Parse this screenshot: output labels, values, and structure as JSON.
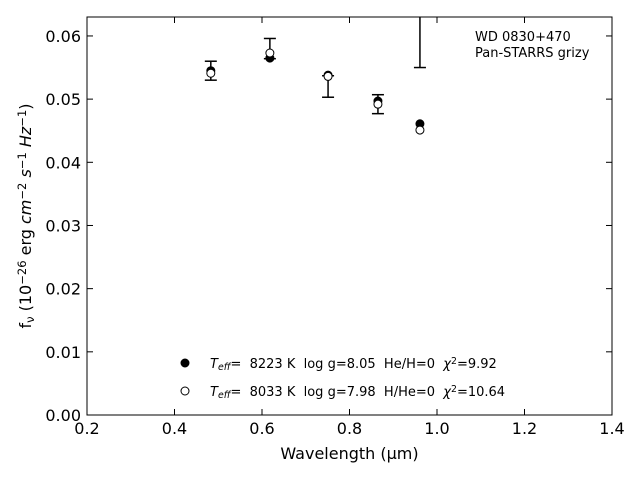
{
  "chart_data": {
    "type": "scatter",
    "x_label": "Wavelength (μm)",
    "y_label": [
      {
        "text": "f"
      },
      {
        "text": "ν",
        "sub": true
      },
      {
        "text": " (10"
      },
      {
        "text": "−26",
        "sup": true
      },
      {
        "text": " erg "
      },
      {
        "text": "cm",
        "italic": true
      },
      {
        "text": "−2",
        "sup": true
      },
      {
        "text": " "
      },
      {
        "text": "s",
        "italic": true
      },
      {
        "text": "−1",
        "sup": true
      },
      {
        "text": " "
      },
      {
        "text": "Hz",
        "italic": true
      },
      {
        "text": "−1",
        "sup": true
      },
      {
        "text": ")"
      }
    ],
    "annotation": [
      "WD 0830+470",
      "Pan-STARRS grizy"
    ],
    "x": [
      0.483,
      0.618,
      0.751,
      0.865,
      0.961
    ],
    "observed": {
      "color": "#000000",
      "values": [
        0.0545,
        0.058,
        0.052,
        0.0492,
        0.0625
      ],
      "errors": [
        0.0015,
        0.0016,
        0.0017,
        0.0015,
        0.0075
      ]
    },
    "series": [
      {
        "marker": "filled",
        "color": "#000000",
        "values": [
          0.0545,
          0.0565,
          0.0538,
          0.0497,
          0.0461
        ],
        "name": [
          {
            "text": "T",
            "italic": true
          },
          {
            "text": "eff",
            "sub": true,
            "italic": true
          },
          {
            "text": "=  8223 K  log g=8.05  He/H=0  "
          },
          {
            "text": "χ",
            "italic": true
          },
          {
            "text": "2",
            "sup": true
          },
          {
            "text": "=9.92"
          }
        ]
      },
      {
        "marker": "open",
        "color": "#000000",
        "values": [
          0.0541,
          0.0573,
          0.0536,
          0.0492,
          0.0451
        ],
        "name": [
          {
            "text": "T",
            "italic": true
          },
          {
            "text": "eff",
            "sub": true,
            "italic": true
          },
          {
            "text": "=  8033 K  log g=7.98  H/He=0  "
          },
          {
            "text": "χ",
            "italic": true
          },
          {
            "text": "2",
            "sup": true
          },
          {
            "text": "=10.64"
          }
        ]
      }
    ],
    "xlim": [
      0.2,
      1.4
    ],
    "ylim": [
      0,
      0.063
    ],
    "xticks": [
      0.2,
      0.4,
      0.6,
      0.8,
      {
        "value": 1.0,
        "label": "1.0"
      },
      1.2,
      1.4
    ],
    "yticks": [
      {
        "value": 0,
        "label": "0.00"
      },
      {
        "value": 0.01,
        "label": "0.01"
      },
      {
        "value": 0.02,
        "label": "0.02"
      },
      {
        "value": 0.03,
        "label": "0.03"
      },
      {
        "value": 0.04,
        "label": "0.04"
      },
      {
        "value": 0.05,
        "label": "0.05"
      },
      {
        "value": 0.06,
        "label": "0.06"
      }
    ],
    "grid": false
  }
}
